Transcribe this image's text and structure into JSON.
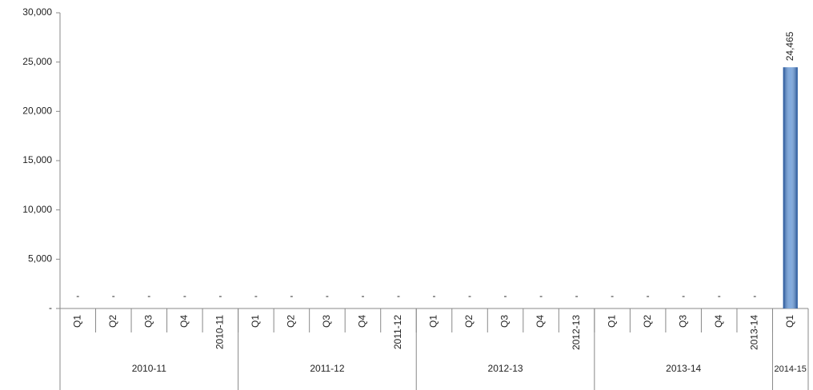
{
  "chart_data": {
    "type": "bar",
    "categories": [
      "Q1",
      "Q2",
      "Q3",
      "Q4",
      "2010-11",
      "Q1",
      "Q2",
      "Q3",
      "Q4",
      "2011-12",
      "Q1",
      "Q2",
      "Q3",
      "Q4",
      "2012-13",
      "Q1",
      "Q2",
      "Q3",
      "Q4",
      "2013-14",
      "Q1"
    ],
    "groups": [
      {
        "name": "2010-11",
        "size": 5
      },
      {
        "name": "2011-12",
        "size": 5
      },
      {
        "name": "2012-13",
        "size": 5
      },
      {
        "name": "2013-14",
        "size": 5
      },
      {
        "name": "2014-15",
        "size": 1
      }
    ],
    "values": [
      0,
      0,
      0,
      0,
      0,
      0,
      0,
      0,
      0,
      0,
      0,
      0,
      0,
      0,
      0,
      0,
      0,
      0,
      0,
      0,
      24465
    ],
    "value_labels": [
      "-",
      "-",
      "-",
      "-",
      "-",
      "-",
      "-",
      "-",
      "-",
      "-",
      "-",
      "-",
      "-",
      "-",
      "-",
      "-",
      "-",
      "-",
      "-",
      "-",
      "24,465"
    ],
    "color": "#3b7ccc",
    "ylim": [
      0,
      30000
    ],
    "yticks": [
      {
        "value": 0,
        "label": "-"
      },
      {
        "value": 5000,
        "label": "5,000"
      },
      {
        "value": 10000,
        "label": "10,000"
      },
      {
        "value": 15000,
        "label": "15,000"
      },
      {
        "value": 20000,
        "label": "20,000"
      },
      {
        "value": 25000,
        "label": "25,000"
      },
      {
        "value": 30000,
        "label": "30,000"
      }
    ],
    "grid": false
  }
}
